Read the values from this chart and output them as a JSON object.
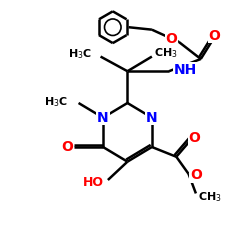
{
  "bg_color": "#ffffff",
  "bond_color": "#000000",
  "bond_width": 1.8,
  "atom_colors": {
    "N": "#0000ff",
    "O": "#ff0000",
    "C": "#000000"
  },
  "font_size": 9,
  "fig_size": [
    2.5,
    2.5
  ],
  "dpi": 100
}
